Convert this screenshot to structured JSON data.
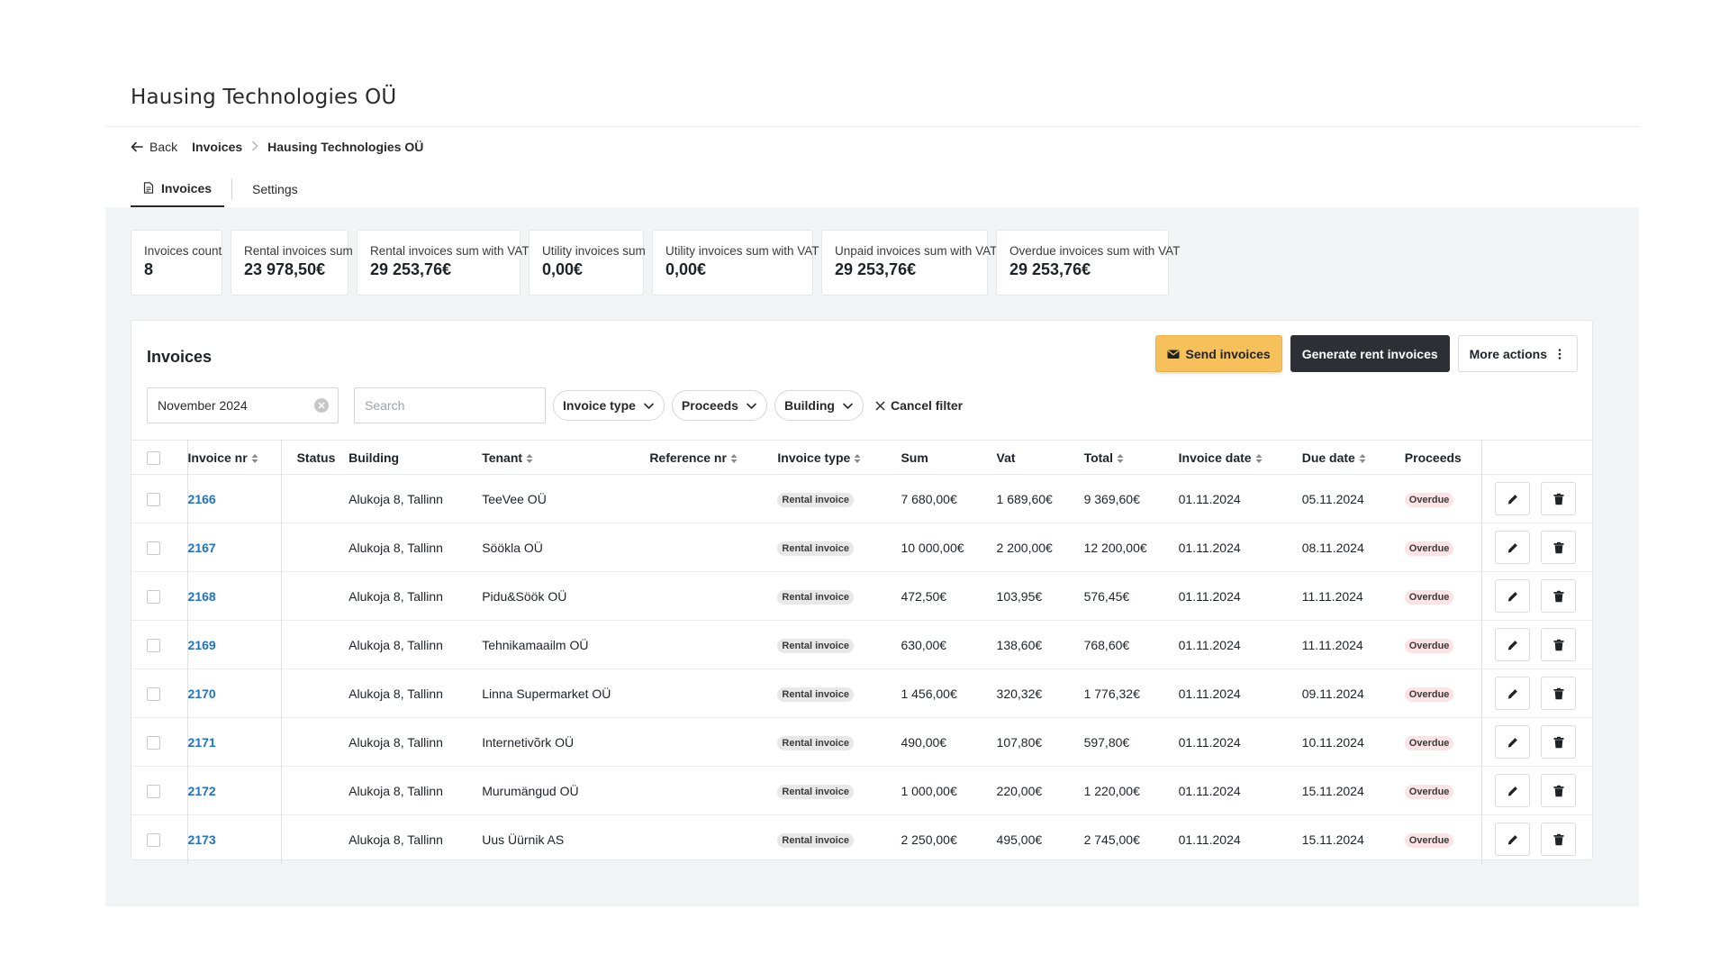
{
  "app": {
    "title": "Hausing Technologies OÜ"
  },
  "breadcrumb": {
    "back": "Back",
    "invoices": "Invoices",
    "current": "Hausing Technologies OÜ"
  },
  "tabs": [
    {
      "label": "Invoices",
      "icon": "document-icon"
    },
    {
      "label": "Settings"
    }
  ],
  "stats": [
    {
      "label": "Invoices count",
      "value": "8"
    },
    {
      "label": "Rental invoices sum",
      "value": "23 978,50€"
    },
    {
      "label": "Rental invoices sum with VAT",
      "value": "29 253,76€"
    },
    {
      "label": "Utility invoices sum",
      "value": "0,00€"
    },
    {
      "label": "Utility invoices sum with VAT",
      "value": "0,00€"
    },
    {
      "label": "Unpaid invoices sum with VAT",
      "value": "29 253,76€"
    },
    {
      "label": "Overdue invoices sum with VAT",
      "value": "29 253,76€"
    }
  ],
  "panel": {
    "title": "Invoices",
    "send_label": "Send invoices",
    "generate_label": "Generate rent invoices",
    "more_label": "More actions"
  },
  "filters": {
    "date_value": "November 2024",
    "search_placeholder": "Search",
    "invoice_type": "Invoice type",
    "proceeds": "Proceeds",
    "building": "Building",
    "cancel": "Cancel filter"
  },
  "table": {
    "headers": {
      "nr": "Invoice nr",
      "status": "Status",
      "building": "Building",
      "tenant": "Tenant",
      "reference": "Reference nr",
      "type": "Invoice type",
      "sum": "Sum",
      "vat": "Vat",
      "total": "Total",
      "invoice_date": "Invoice date",
      "due_date": "Due date",
      "proceeds": "Proceeds"
    },
    "rows": [
      {
        "nr": "2166",
        "building": "Alukoja 8, Tallinn",
        "tenant": "TeeVee OÜ",
        "type": "Rental invoice",
        "sum": "7 680,00€",
        "vat": "1 689,60€",
        "total": "9 369,60€",
        "invoice_date": "01.11.2024",
        "due_date": "05.11.2024",
        "proceeds": "Overdue"
      },
      {
        "nr": "2167",
        "building": "Alukoja 8, Tallinn",
        "tenant": "Söökla OÜ",
        "type": "Rental invoice",
        "sum": "10 000,00€",
        "vat": "2 200,00€",
        "total": "12 200,00€",
        "invoice_date": "01.11.2024",
        "due_date": "08.11.2024",
        "proceeds": "Overdue"
      },
      {
        "nr": "2168",
        "building": "Alukoja 8, Tallinn",
        "tenant": "Pidu&Söök OÜ",
        "type": "Rental invoice",
        "sum": "472,50€",
        "vat": "103,95€",
        "total": "576,45€",
        "invoice_date": "01.11.2024",
        "due_date": "11.11.2024",
        "proceeds": "Overdue"
      },
      {
        "nr": "2169",
        "building": "Alukoja 8, Tallinn",
        "tenant": "Tehnikamaailm OÜ",
        "type": "Rental invoice",
        "sum": "630,00€",
        "vat": "138,60€",
        "total": "768,60€",
        "invoice_date": "01.11.2024",
        "due_date": "11.11.2024",
        "proceeds": "Overdue"
      },
      {
        "nr": "2170",
        "building": "Alukoja 8, Tallinn",
        "tenant": "Linna Supermarket OÜ",
        "type": "Rental invoice",
        "sum": "1 456,00€",
        "vat": "320,32€",
        "total": "1 776,32€",
        "invoice_date": "01.11.2024",
        "due_date": "09.11.2024",
        "proceeds": "Overdue"
      },
      {
        "nr": "2171",
        "building": "Alukoja 8, Tallinn",
        "tenant": "Internetivõrk OÜ",
        "type": "Rental invoice",
        "sum": "490,00€",
        "vat": "107,80€",
        "total": "597,80€",
        "invoice_date": "01.11.2024",
        "due_date": "10.11.2024",
        "proceeds": "Overdue"
      },
      {
        "nr": "2172",
        "building": "Alukoja 8, Tallinn",
        "tenant": "Murumängud OÜ",
        "type": "Rental invoice",
        "sum": "1 000,00€",
        "vat": "220,00€",
        "total": "1 220,00€",
        "invoice_date": "01.11.2024",
        "due_date": "15.11.2024",
        "proceeds": "Overdue"
      },
      {
        "nr": "2173",
        "building": "Alukoja 8, Tallinn",
        "tenant": "Uus Üürnik AS",
        "type": "Rental invoice",
        "sum": "2 250,00€",
        "vat": "495,00€",
        "total": "2 745,00€",
        "invoice_date": "01.11.2024",
        "due_date": "15.11.2024",
        "proceeds": "Overdue"
      }
    ]
  },
  "colors": {
    "accent_yellow": "#f6c15b",
    "dark_button": "#2c3035",
    "link_blue": "#1e72c8",
    "overdue_bg": "#fbe3e6",
    "content_bg": "#f3f4f6"
  }
}
